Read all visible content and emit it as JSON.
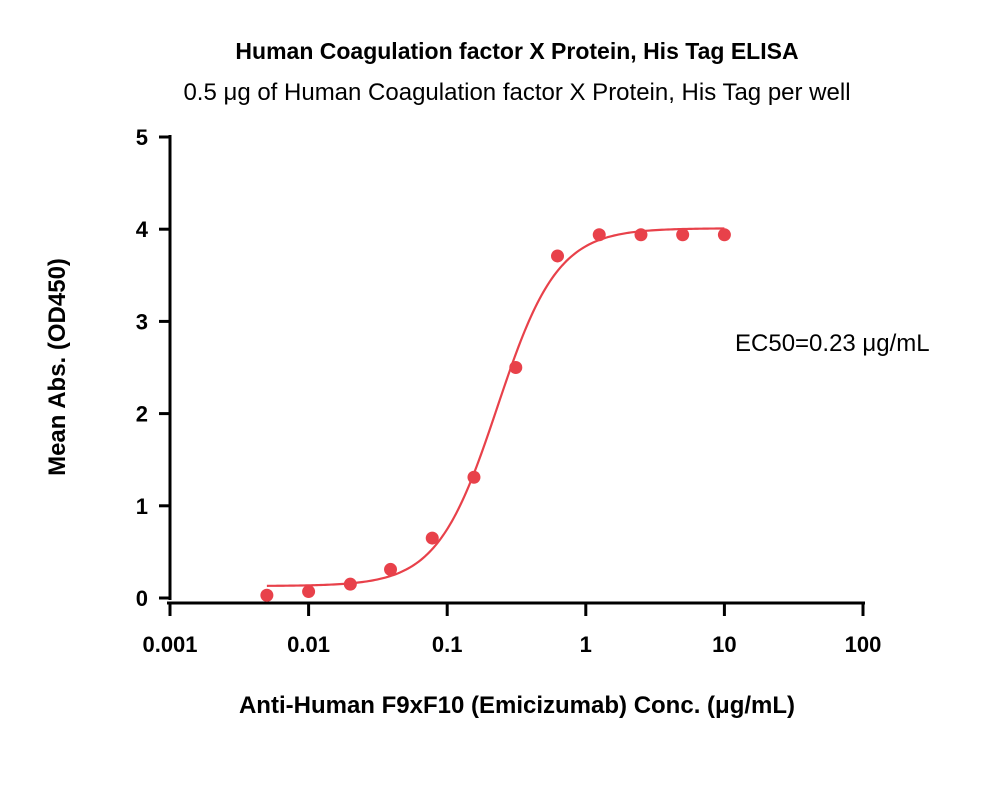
{
  "chart_data": {
    "type": "scatter",
    "title": "Human Coagulation factor X Protein, His Tag ELISA",
    "subtitle": "0.5 μg of Human Coagulation factor X Protein, His Tag per well",
    "xlabel": "Anti-Human F9xF10 (Emicizumab) Conc. (μg/mL)",
    "ylabel": "Mean Abs. (OD450)",
    "x_scale": "log",
    "xlim": [
      0.001,
      100
    ],
    "ylim": [
      0,
      5
    ],
    "x_ticks": [
      0.001,
      0.01,
      0.1,
      1,
      10,
      100
    ],
    "x_tick_labels": [
      "0.001",
      "0.01",
      "0.1",
      "1",
      "10",
      "100"
    ],
    "y_ticks": [
      0,
      1,
      2,
      3,
      4,
      5
    ],
    "y_tick_labels": [
      "0",
      "1",
      "2",
      "3",
      "4",
      "5"
    ],
    "grid": false,
    "annotation": "EC50=0.23 μg/mL",
    "color": "#e8414a",
    "series": [
      {
        "x": [
          0.005,
          0.01,
          0.02,
          0.039,
          0.078,
          0.156,
          0.3125,
          0.625,
          1.25,
          2.5,
          5,
          10
        ],
        "y": [
          0.03,
          0.07,
          0.15,
          0.31,
          0.65,
          1.31,
          2.5,
          3.71,
          3.94,
          3.94,
          3.94,
          3.94
        ]
      }
    ],
    "fit": {
      "model": "4PL",
      "bottom": 0.13,
      "top": 4.01,
      "ec50": 0.23,
      "hill": 2.0
    }
  }
}
